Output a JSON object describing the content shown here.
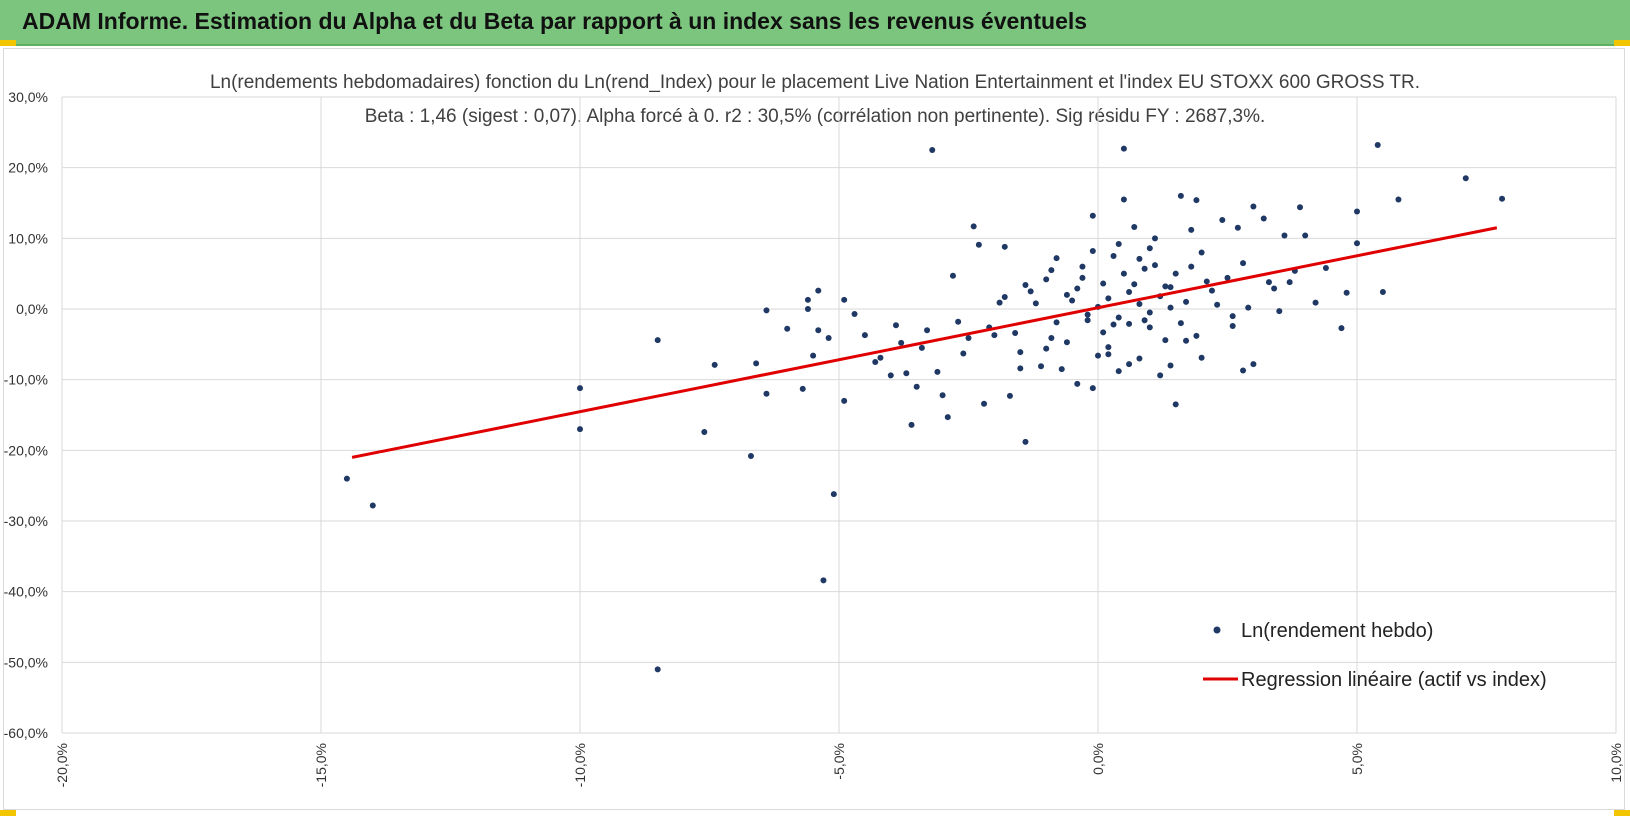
{
  "header": {
    "title": "ADAM Informe. Estimation du Alpha et du Beta par rapport à un index sans les revenus éventuels"
  },
  "colors": {
    "banner": "#7cc57e",
    "points": "#1f3864",
    "regression": "#e00000",
    "grid": "#d9d9d9"
  },
  "chart_data": {
    "type": "scatter",
    "title": "Ln(rendements hebdomadaires) fonction du Ln(rend_Index) pour le placement Live Nation Entertainment et l'index EU STOXX 600 GROSS TR.",
    "subtitle": "Beta : 1,46 (sigest : 0,07). Alpha forcé à 0. r2 : 30,5% (corrélation non pertinente). Sig résidu FY : 2687,3%.",
    "xlabel": "",
    "ylabel": "",
    "xlim": [
      -20,
      10
    ],
    "ylim": [
      -60,
      30
    ],
    "x_ticks": [
      -20,
      -15,
      -10,
      -5,
      0,
      5,
      10
    ],
    "x_tick_labels": [
      "-20,0%",
      "-15,0%",
      "-10,0%",
      "-5,0%",
      "0,0%",
      "5,0%",
      "10,0%"
    ],
    "y_ticks": [
      30,
      20,
      10,
      0,
      -10,
      -20,
      -30,
      -40,
      -50,
      -60
    ],
    "y_tick_labels": [
      "30,0%",
      "20,0%",
      "10,0%",
      "0,0%",
      "-10,0%",
      "-20,0%",
      "-30,0%",
      "-40,0%",
      "-50,0%",
      "-60,0%"
    ],
    "grid": true,
    "legend_position": "bottom-right",
    "series": [
      {
        "name": "Ln(rendement hebdo)",
        "kind": "scatter",
        "points": [
          [
            -14.5,
            -24.0
          ],
          [
            -14.0,
            -27.8
          ],
          [
            -10.0,
            -11.2
          ],
          [
            -10.0,
            -17.0
          ],
          [
            -8.5,
            -4.4
          ],
          [
            -8.5,
            -51.0
          ],
          [
            -7.6,
            -17.4
          ],
          [
            -7.4,
            -7.9
          ],
          [
            -6.7,
            -20.8
          ],
          [
            -6.6,
            -7.7
          ],
          [
            -6.4,
            -0.2
          ],
          [
            -6.4,
            -12.0
          ],
          [
            -6.0,
            -2.8
          ],
          [
            -5.7,
            -11.3
          ],
          [
            -5.6,
            0.0
          ],
          [
            -5.6,
            1.3
          ],
          [
            -5.5,
            -6.6
          ],
          [
            -5.4,
            2.6
          ],
          [
            -5.4,
            -3.0
          ],
          [
            -5.3,
            -38.4
          ],
          [
            -5.2,
            -4.1
          ],
          [
            -5.1,
            -26.2
          ],
          [
            -4.9,
            -13.0
          ],
          [
            -4.9,
            1.3
          ],
          [
            -4.7,
            -0.7
          ],
          [
            -4.5,
            -3.7
          ],
          [
            -4.3,
            -7.5
          ],
          [
            -4.2,
            -6.9
          ],
          [
            -4.0,
            -9.4
          ],
          [
            -3.9,
            -2.3
          ],
          [
            -3.8,
            -4.8
          ],
          [
            -3.7,
            -9.1
          ],
          [
            -3.6,
            -16.4
          ],
          [
            -3.5,
            -11.0
          ],
          [
            -3.4,
            -5.5
          ],
          [
            -3.2,
            22.5
          ],
          [
            -3.1,
            -8.9
          ],
          [
            -3.0,
            -12.2
          ],
          [
            -2.9,
            -15.3
          ],
          [
            -2.8,
            4.7
          ],
          [
            -2.6,
            -6.3
          ],
          [
            -2.4,
            11.7
          ],
          [
            -2.3,
            9.1
          ],
          [
            -2.2,
            -13.4
          ],
          [
            -2.0,
            -3.7
          ],
          [
            -1.9,
            0.9
          ],
          [
            -1.8,
            8.8
          ],
          [
            -1.7,
            -12.3
          ],
          [
            -1.5,
            -6.1
          ],
          [
            -1.4,
            -18.8
          ],
          [
            -1.3,
            2.5
          ],
          [
            -1.1,
            -8.1
          ],
          [
            -1.0,
            4.2
          ],
          [
            -0.9,
            -4.1
          ],
          [
            -0.8,
            7.2
          ],
          [
            -0.7,
            -8.5
          ],
          [
            -0.6,
            2.0
          ],
          [
            -0.4,
            -10.6
          ],
          [
            -0.3,
            4.4
          ],
          [
            -0.2,
            -1.6
          ],
          [
            -0.1,
            13.2
          ],
          [
            -0.1,
            -11.2
          ],
          [
            0.1,
            3.6
          ],
          [
            0.2,
            -6.4
          ],
          [
            0.3,
            7.5
          ],
          [
            0.4,
            -8.8
          ],
          [
            0.5,
            15.5
          ],
          [
            0.5,
            22.7
          ],
          [
            0.6,
            -2.1
          ],
          [
            0.7,
            11.6
          ],
          [
            0.8,
            -7.0
          ],
          [
            0.9,
            5.7
          ],
          [
            1.0,
            -2.6
          ],
          [
            1.1,
            10.0
          ],
          [
            1.2,
            -9.4
          ],
          [
            1.3,
            3.2
          ],
          [
            1.4,
            0.2
          ],
          [
            1.5,
            -13.5
          ],
          [
            1.6,
            16.0
          ],
          [
            1.7,
            -4.5
          ],
          [
            1.8,
            11.2
          ],
          [
            1.9,
            15.4
          ],
          [
            2.0,
            -6.9
          ],
          [
            2.1,
            3.9
          ],
          [
            2.3,
            0.6
          ],
          [
            2.4,
            12.6
          ],
          [
            2.6,
            -2.4
          ],
          [
            2.7,
            11.5
          ],
          [
            2.8,
            -8.7
          ],
          [
            3.0,
            14.5
          ],
          [
            3.0,
            -7.8
          ],
          [
            3.2,
            12.8
          ],
          [
            3.3,
            3.8
          ],
          [
            3.5,
            -0.3
          ],
          [
            3.6,
            10.4
          ],
          [
            3.8,
            5.4
          ],
          [
            3.9,
            14.4
          ],
          [
            4.0,
            10.4
          ],
          [
            4.2,
            0.9
          ],
          [
            4.4,
            5.8
          ],
          [
            4.7,
            -2.7
          ],
          [
            4.8,
            2.3
          ],
          [
            5.0,
            13.8
          ],
          [
            5.0,
            9.3
          ],
          [
            5.4,
            23.2
          ],
          [
            5.5,
            2.4
          ],
          [
            5.8,
            15.5
          ],
          [
            7.1,
            18.5
          ],
          [
            7.8,
            15.6
          ],
          [
            -0.5,
            1.2
          ],
          [
            -0.2,
            -0.8
          ],
          [
            0.0,
            0.3
          ],
          [
            0.2,
            1.5
          ],
          [
            0.4,
            -1.2
          ],
          [
            0.6,
            2.4
          ],
          [
            0.8,
            0.7
          ],
          [
            1.0,
            -0.5
          ],
          [
            1.2,
            1.8
          ],
          [
            1.4,
            3.1
          ],
          [
            0.3,
            -2.2
          ],
          [
            0.7,
            3.5
          ],
          [
            -0.8,
            -1.9
          ],
          [
            1.7,
            1.0
          ],
          [
            0.1,
            -3.3
          ],
          [
            -1.2,
            0.8
          ],
          [
            2.2,
            2.6
          ],
          [
            0.9,
            -1.6
          ],
          [
            -0.4,
            2.9
          ],
          [
            1.6,
            -2.0
          ],
          [
            -1.6,
            -3.4
          ],
          [
            2.5,
            4.4
          ],
          [
            -2.1,
            -2.6
          ],
          [
            1.9,
            -3.8
          ],
          [
            -0.6,
            -4.7
          ],
          [
            0.5,
            5.0
          ],
          [
            1.1,
            6.2
          ],
          [
            -1.0,
            -5.6
          ],
          [
            2.9,
            0.2
          ],
          [
            -2.5,
            -4.1
          ],
          [
            0.2,
            -5.4
          ],
          [
            1.3,
            -4.4
          ],
          [
            -0.3,
            6.0
          ],
          [
            0.8,
            7.1
          ],
          [
            1.8,
            6.0
          ],
          [
            -1.4,
            3.4
          ],
          [
            2.6,
            -1.0
          ],
          [
            -0.9,
            5.5
          ],
          [
            3.4,
            2.9
          ],
          [
            -1.8,
            1.7
          ],
          [
            0.0,
            -6.6
          ],
          [
            1.5,
            5.0
          ],
          [
            -2.7,
            -1.8
          ],
          [
            2.0,
            8.0
          ],
          [
            -0.1,
            8.2
          ],
          [
            0.6,
            -7.8
          ],
          [
            1.0,
            8.6
          ],
          [
            -3.3,
            -3.0
          ],
          [
            3.7,
            3.8
          ],
          [
            2.8,
            6.5
          ],
          [
            -1.5,
            -8.4
          ],
          [
            0.4,
            9.2
          ],
          [
            1.4,
            -8.0
          ]
        ]
      },
      {
        "name": "Regression linéaire (actif vs index)",
        "kind": "line",
        "points": [
          [
            -14.4,
            -21.0
          ],
          [
            7.7,
            11.5
          ]
        ]
      }
    ]
  }
}
